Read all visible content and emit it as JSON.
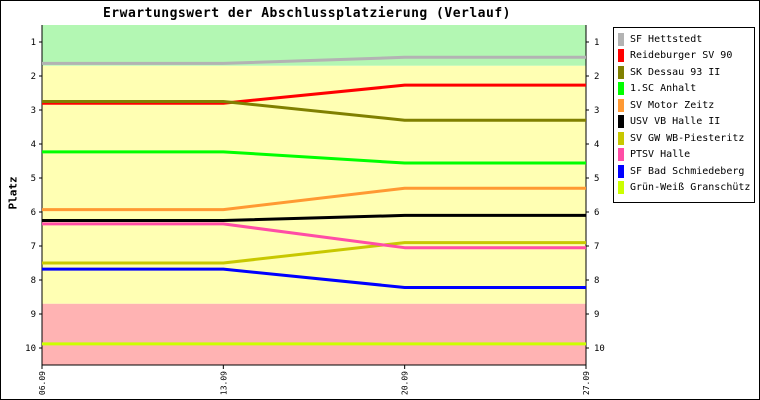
{
  "chart_data": {
    "type": "line",
    "title": "Erwartungswert der Abschlussplatzierung (Verlauf)",
    "ylabel": "Platz",
    "xlabel": "",
    "categories": [
      "06.09",
      "13.09",
      "20.09",
      "27.09"
    ],
    "y_ticks": [
      1,
      2,
      3,
      4,
      5,
      6,
      7,
      8,
      9,
      10
    ],
    "ylim": [
      10.5,
      0.5
    ],
    "y_inverted": true,
    "bands": [
      {
        "from": 0.5,
        "to": 1.7,
        "color": "#b3f7b3"
      },
      {
        "from": 1.7,
        "to": 8.7,
        "color": "#ffffb3"
      },
      {
        "from": 8.7,
        "to": 10.5,
        "color": "#ffb3b3"
      }
    ],
    "legend_position": "right",
    "series": [
      {
        "name": "SF Hettstedt",
        "color": "#b3b3b3",
        "values": [
          1.63,
          1.63,
          1.45,
          1.45
        ]
      },
      {
        "name": "Reideburger SV 90",
        "color": "#ff0000",
        "values": [
          2.8,
          2.8,
          2.27,
          2.27
        ]
      },
      {
        "name": "SK Dessau 93 II",
        "color": "#808000",
        "values": [
          2.75,
          2.75,
          3.3,
          3.3
        ]
      },
      {
        "name": "1.SC Anhalt",
        "color": "#00ff00",
        "values": [
          4.23,
          4.23,
          4.56,
          4.56
        ]
      },
      {
        "name": "SV Motor Zeitz",
        "color": "#ff9933",
        "values": [
          5.93,
          5.93,
          5.3,
          5.3
        ]
      },
      {
        "name": "USV VB Halle II",
        "color": "#000000",
        "values": [
          6.25,
          6.25,
          6.1,
          6.1
        ]
      },
      {
        "name": "SV GW WB-Piesteritz",
        "color": "#c8c800",
        "values": [
          7.5,
          7.5,
          6.9,
          6.9
        ]
      },
      {
        "name": "PTSV Halle",
        "color": "#ff4da6",
        "values": [
          6.35,
          6.35,
          7.05,
          7.05
        ]
      },
      {
        "name": "SF Bad Schmiedeberg",
        "color": "#0000ff",
        "values": [
          7.68,
          7.68,
          8.22,
          8.22
        ]
      },
      {
        "name": "Grün-Weiß Granschütz",
        "color": "#ccff00",
        "values": [
          9.88,
          9.88,
          9.88,
          9.88
        ]
      }
    ]
  }
}
